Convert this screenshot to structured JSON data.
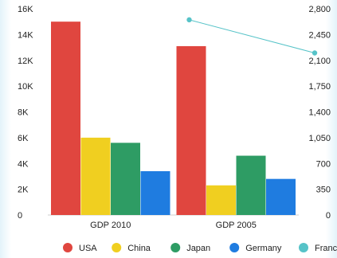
{
  "chart_data": {
    "type": "bar",
    "categories": [
      "GDP 2010",
      "GDP 2005"
    ],
    "series": [
      {
        "name": "USA",
        "type": "bar",
        "axis": "left",
        "color": "#e0463f",
        "values": [
          15000,
          13100
        ]
      },
      {
        "name": "China",
        "type": "bar",
        "axis": "left",
        "color": "#f0cf20",
        "values": [
          6000,
          2300
        ]
      },
      {
        "name": "Japan",
        "type": "bar",
        "axis": "left",
        "color": "#2e9c64",
        "values": [
          5600,
          4600
        ]
      },
      {
        "name": "Germany",
        "type": "bar",
        "axis": "left",
        "color": "#1f7ce0",
        "values": [
          3400,
          2800
        ]
      },
      {
        "name": "France",
        "type": "line",
        "axis": "right",
        "color": "#56c3c8",
        "values": [
          2650,
          2200
        ]
      }
    ],
    "y_left": {
      "min": 0,
      "max": 16000,
      "ticks": [
        "0",
        "2K",
        "4K",
        "6K",
        "8K",
        "10K",
        "12K",
        "14K",
        "16K"
      ]
    },
    "y_right": {
      "min": 0,
      "max": 2800,
      "ticks": [
        "0",
        "350",
        "700",
        "1,050",
        "1,400",
        "1,750",
        "2,100",
        "2,450",
        "2,800"
      ]
    },
    "legend_position": "bottom",
    "grid": false
  }
}
